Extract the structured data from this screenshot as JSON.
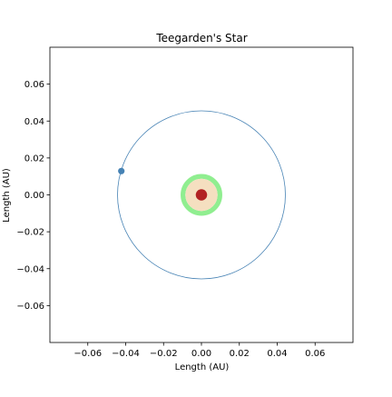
{
  "chart_data": {
    "type": "scatter",
    "title": "Teegarden's Star",
    "xlabel": "Length (AU)",
    "ylabel": "Length (AU)",
    "xlim": [
      -0.08,
      0.08
    ],
    "ylim": [
      -0.08,
      0.08
    ],
    "xticks": [
      -0.06,
      -0.04,
      -0.02,
      0.0,
      0.02,
      0.04,
      0.06
    ],
    "yticks": [
      -0.06,
      -0.04,
      -0.02,
      0.0,
      0.02,
      0.04,
      0.06
    ],
    "xtick_labels": [
      "−0.06",
      "−0.04",
      "−0.02",
      "0.00",
      "0.02",
      "0.04",
      "0.06"
    ],
    "ytick_labels": [
      "−0.06",
      "−0.04",
      "−0.02",
      "0.00",
      "0.02",
      "0.04",
      "0.06"
    ],
    "grid": false,
    "aspect": "equal",
    "habitable_zone": {
      "outer_radius": 0.011,
      "inner_radius": 0.0085,
      "color": "#90ee90"
    },
    "inner_zone": {
      "radius": 0.0085,
      "color": "#f5dfc0"
    },
    "star": {
      "x": 0.0,
      "y": 0.0,
      "radius": 0.003,
      "color": "#b22222"
    },
    "orbits": [
      {
        "center_x": 0.0,
        "center_y": 0.0,
        "radius": 0.0443,
        "color": "#4682b4"
      }
    ],
    "planets": [
      {
        "x": -0.0423,
        "y": 0.0129,
        "color": "#4682b4"
      }
    ]
  }
}
